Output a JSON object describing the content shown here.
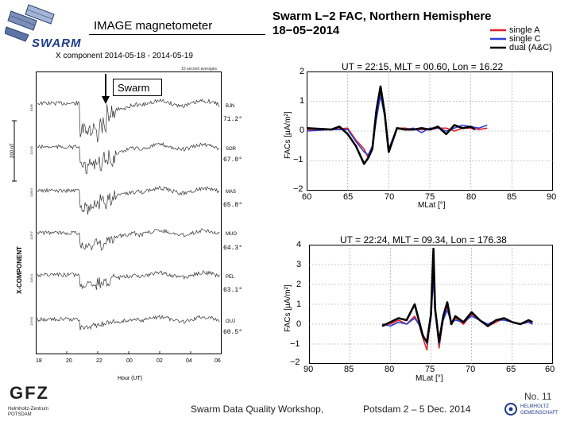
{
  "header": {
    "swarm_logo_text": "SWARM",
    "magnetometer_title": "IMAGE magnetometer",
    "fac_title_line1": "Swarm L−2 FAC, Northern Hemisphere",
    "fac_title_line2": "18−05−2014"
  },
  "magnetometer": {
    "title": "X component 2014-05-18 - 2014-05-19",
    "subtitle": "10 second averages",
    "swarm_label": "Swarm",
    "y_axis_label": "X-COMPONENT",
    "scale_label": "200 nT",
    "x_axis_label": "Hour (UT)",
    "x_ticks": [
      "18",
      "20",
      "22",
      "00",
      "02",
      "04",
      "06"
    ],
    "stations": [
      {
        "code": "BJN",
        "lat": "71.2°",
        "baseline": "8486"
      },
      {
        "code": "SOR",
        "lat": "67.0°",
        "baseline": "10240"
      },
      {
        "code": "MAS",
        "lat": "65.8°",
        "baseline": "10853"
      },
      {
        "code": "MUO",
        "lat": "64.3°",
        "baseline": "11397"
      },
      {
        "code": "PEL",
        "lat": "63.1°",
        "baseline": "11814"
      },
      {
        "code": "OUJ",
        "lat": "60.5°",
        "baseline": "12594"
      }
    ]
  },
  "legend": [
    {
      "label": "single A",
      "color": "#e0202a"
    },
    {
      "label": "single C",
      "color": "#2f3fd8"
    },
    {
      "label": "dual (A&C)",
      "color": "#000000"
    }
  ],
  "chart_data": [
    {
      "type": "line",
      "title": "UT = 22:15, MLT = 00.60, Lon = 16.22",
      "xlabel": "MLat [°]",
      "ylabel": "FACs [µA/m²]",
      "xlim": [
        60,
        90
      ],
      "ylim": [
        -2,
        2
      ],
      "x_ticks": [
        "60",
        "65",
        "70",
        "75",
        "80",
        "85",
        "90"
      ],
      "y_ticks": [
        "2",
        "1",
        "0",
        "−1",
        "−2"
      ],
      "series": [
        {
          "name": "single A",
          "x": [
            60,
            63,
            65,
            66,
            67,
            67.5,
            68,
            68.5,
            69,
            69.5,
            70,
            71,
            72,
            73,
            74,
            75,
            76,
            77,
            78,
            79,
            80,
            81,
            82
          ],
          "y": [
            0.05,
            0.05,
            0.1,
            -0.3,
            -0.6,
            -0.9,
            -0.6,
            0.5,
            1.3,
            0.6,
            -0.7,
            0.1,
            0.1,
            0.05,
            0.05,
            0.05,
            0.1,
            0.1,
            0.0,
            0.1,
            0.1,
            0.05,
            0.1
          ]
        },
        {
          "name": "single C",
          "x": [
            60,
            63,
            65,
            66,
            67,
            67.5,
            68,
            68.5,
            69,
            69.5,
            70,
            71,
            72,
            73,
            74,
            75,
            76,
            77,
            78,
            79,
            80,
            81,
            82
          ],
          "y": [
            0.0,
            0.05,
            0.05,
            -0.35,
            -0.7,
            -0.8,
            -0.5,
            0.4,
            1.2,
            0.5,
            -0.6,
            0.1,
            0.05,
            0.1,
            -0.05,
            0.1,
            0.1,
            0.0,
            0.1,
            0.2,
            0.15,
            0.1,
            0.2
          ]
        },
        {
          "name": "dual (A&C)",
          "x": [
            60,
            63,
            64,
            65,
            66,
            67,
            67.5,
            68,
            68.5,
            69,
            69.5,
            70,
            71,
            72,
            73,
            74,
            75,
            76,
            77,
            78,
            79,
            80,
            80.5
          ],
          "y": [
            0.1,
            0.05,
            0.15,
            -0.1,
            -0.5,
            -1.1,
            -0.9,
            -0.6,
            0.7,
            1.5,
            0.6,
            -0.7,
            0.1,
            0.05,
            0.05,
            0.1,
            0.05,
            0.15,
            -0.1,
            0.2,
            0.1,
            0.15,
            0.05
          ]
        }
      ]
    },
    {
      "type": "line",
      "title": "UT = 22:24, MLT = 09.34, Lon = 176.38",
      "xlabel": "MLat [°]",
      "ylabel": "FACs [µA/m²]",
      "xlim": [
        90,
        60
      ],
      "ylim": [
        -2,
        4
      ],
      "x_ticks": [
        "90",
        "85",
        "80",
        "75",
        "70",
        "65",
        "60"
      ],
      "y_ticks": [
        "4",
        "3",
        "2",
        "1",
        "0",
        "−1",
        "−2"
      ],
      "series": [
        {
          "name": "single A",
          "x": [
            81,
            80,
            79,
            78,
            77,
            76.5,
            76,
            75.5,
            75,
            74.7,
            74.5,
            74,
            73.5,
            73,
            72.5,
            72,
            71,
            70,
            69,
            68,
            67,
            66,
            65,
            64,
            63,
            62.5
          ],
          "y": [
            0.0,
            0.0,
            0.2,
            0.0,
            0.4,
            0.0,
            -0.7,
            -1.3,
            0.5,
            3.2,
            0.8,
            -1.2,
            0.3,
            0.9,
            0.0,
            0.3,
            0.0,
            0.5,
            0.2,
            -0.1,
            0.1,
            0.3,
            0.1,
            0.0,
            0.1,
            0.0
          ]
        },
        {
          "name": "single C",
          "x": [
            81,
            80,
            79,
            78,
            77,
            76.5,
            76,
            75.5,
            75,
            74.7,
            74.5,
            74,
            73.5,
            73,
            72.5,
            72,
            71,
            70,
            69,
            68,
            67,
            66,
            65,
            64,
            63,
            62.5
          ],
          "y": [
            0.0,
            -0.1,
            0.1,
            0.0,
            0.3,
            0.0,
            -0.5,
            -1.0,
            0.3,
            2.4,
            0.7,
            -1.0,
            0.2,
            0.7,
            0.1,
            0.2,
            0.1,
            0.4,
            0.2,
            0.0,
            0.2,
            0.2,
            0.1,
            0.0,
            0.1,
            0.0
          ]
        },
        {
          "name": "dual (A&C)",
          "x": [
            81,
            80,
            79,
            78,
            77,
            76.5,
            76,
            75.5,
            75,
            74.7,
            74.5,
            74,
            73.5,
            73,
            72.5,
            72,
            71,
            70,
            69,
            68,
            67,
            66,
            65,
            64,
            63,
            62.5
          ],
          "y": [
            -0.1,
            0.1,
            0.3,
            0.2,
            1.0,
            0.2,
            -0.6,
            -0.9,
            0.5,
            3.8,
            0.8,
            -0.9,
            0.4,
            1.1,
            0.0,
            0.4,
            0.1,
            0.6,
            0.2,
            -0.1,
            0.2,
            0.3,
            0.1,
            0.0,
            0.2,
            0.1
          ]
        }
      ]
    }
  ],
  "footer": {
    "workshop": "Swarm Data Quality Workshop,",
    "location": "Potsdam 2 – 5 Dec. 2014",
    "page_number": "No. 11",
    "gfz_name": "GFZ",
    "gfz_sub1": "Helmholtz-Zentrum",
    "gfz_sub2": "POTSDAM",
    "helmholtz1": "HELMHOLTZ",
    "helmholtz2": "GEMEINSCHAFT"
  }
}
